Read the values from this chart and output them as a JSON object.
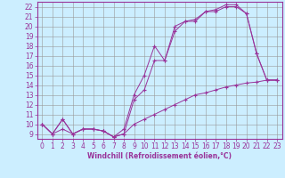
{
  "xlabel": "Windchill (Refroidissement éolien,°C)",
  "background_color": "#cceeff",
  "grid_color": "#999999",
  "line_color": "#993399",
  "xlim": [
    -0.5,
    23.5
  ],
  "ylim": [
    8.5,
    22.5
  ],
  "yticks": [
    9,
    10,
    11,
    12,
    13,
    14,
    15,
    16,
    17,
    18,
    19,
    20,
    21,
    22
  ],
  "xticks": [
    0,
    1,
    2,
    3,
    4,
    5,
    6,
    7,
    8,
    9,
    10,
    11,
    12,
    13,
    14,
    15,
    16,
    17,
    18,
    19,
    20,
    21,
    22,
    23
  ],
  "line1_x": [
    0,
    1,
    2,
    3,
    4,
    5,
    6,
    7,
    8,
    9,
    10,
    11,
    12,
    13,
    14,
    15,
    16,
    17,
    18,
    19,
    20,
    21,
    22,
    23
  ],
  "line1_y": [
    10.0,
    9.0,
    10.5,
    9.0,
    9.5,
    9.5,
    9.3,
    8.7,
    9.0,
    12.5,
    13.5,
    16.5,
    16.5,
    19.5,
    20.5,
    20.5,
    21.5,
    21.5,
    22.0,
    22.0,
    21.3,
    17.2,
    14.5,
    14.5
  ],
  "line2_x": [
    0,
    1,
    2,
    3,
    4,
    5,
    6,
    7,
    8,
    9,
    10,
    11,
    12,
    13,
    14,
    15,
    16,
    17,
    18,
    19,
    20,
    21,
    22,
    23
  ],
  "line2_y": [
    10.0,
    9.0,
    10.5,
    9.0,
    9.5,
    9.5,
    9.3,
    8.7,
    9.5,
    13.0,
    15.0,
    18.0,
    16.5,
    20.0,
    20.5,
    20.7,
    21.5,
    21.7,
    22.2,
    22.2,
    21.3,
    17.2,
    14.5,
    14.5
  ],
  "line3_x": [
    0,
    1,
    2,
    3,
    4,
    5,
    6,
    7,
    8,
    9,
    10,
    11,
    12,
    13,
    14,
    15,
    16,
    17,
    18,
    19,
    20,
    21,
    22,
    23
  ],
  "line3_y": [
    10.0,
    9.0,
    9.5,
    9.0,
    9.5,
    9.5,
    9.3,
    8.7,
    9.0,
    10.0,
    10.5,
    11.0,
    11.5,
    12.0,
    12.5,
    13.0,
    13.2,
    13.5,
    13.8,
    14.0,
    14.2,
    14.3,
    14.5,
    14.5
  ],
  "tick_fontsize": 5.5,
  "xlabel_fontsize": 5.5
}
